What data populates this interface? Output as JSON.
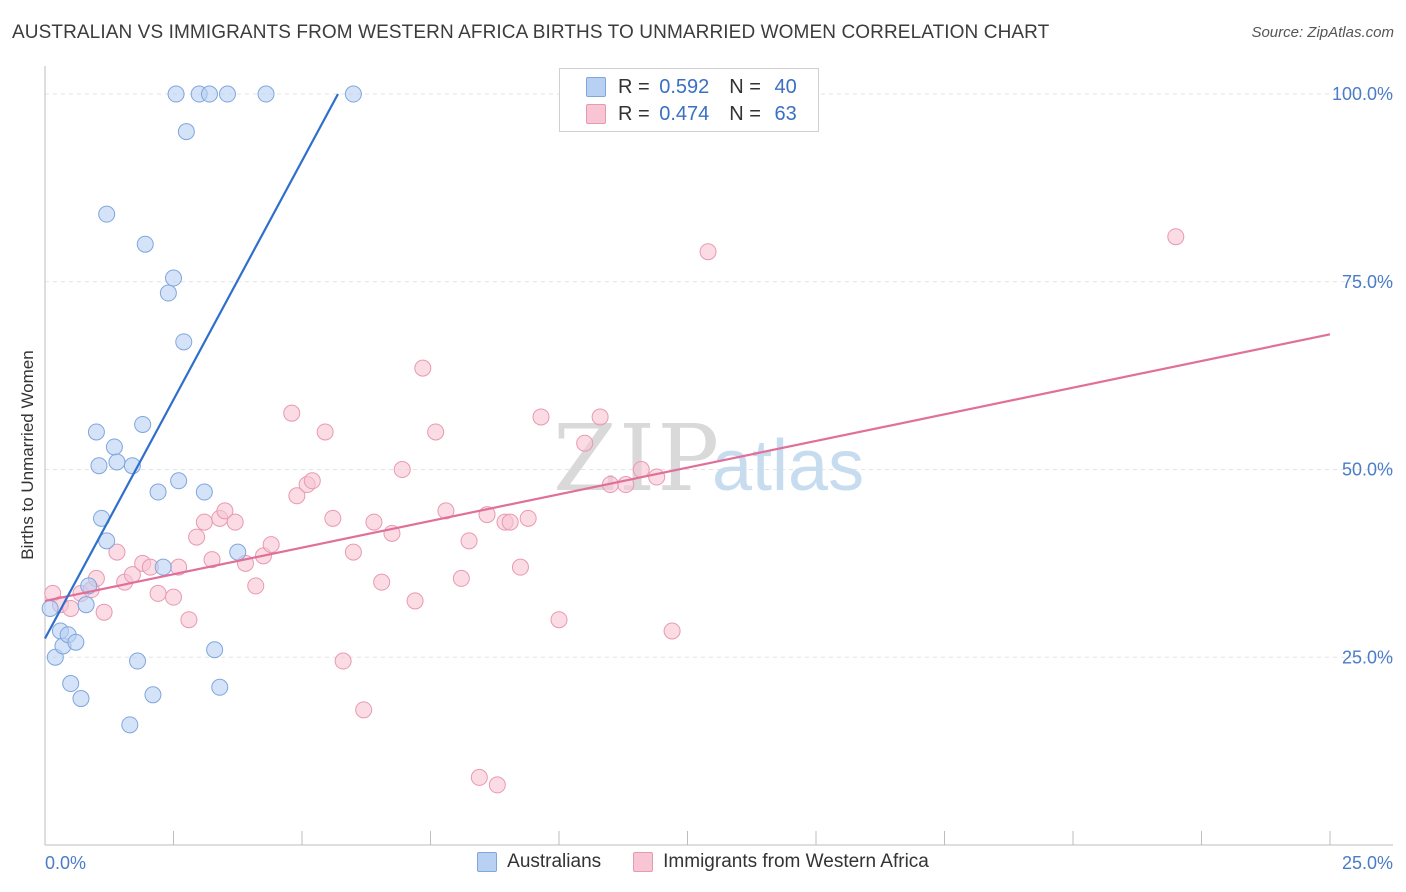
{
  "header": {
    "title": "AUSTRALIAN VS IMMIGRANTS FROM WESTERN AFRICA BIRTHS TO UNMARRIED WOMEN CORRELATION CHART",
    "source": "Source: ZipAtlas.com"
  },
  "watermark": {
    "zip": "ZIP",
    "atlas": "atlas"
  },
  "legend": {
    "rows": [
      {
        "r_label": "R = ",
        "r_value": "0.592",
        "n_label": "N = ",
        "n_value": "40"
      },
      {
        "r_label": "R = ",
        "r_value": "0.474",
        "n_label": "N = ",
        "n_value": "63"
      }
    ]
  },
  "bottom_legend": {
    "items": [
      "Australians",
      "Immigrants from Western Africa"
    ]
  },
  "colors": {
    "blue_fill": "#b8d1f3",
    "blue_stroke": "#7fa6dd",
    "blue_line": "#2f6fcc",
    "pink_fill": "#f8c5d4",
    "pink_stroke": "#e899b2",
    "pink_line": "#e0709a",
    "tick_text": "#4a7cc8",
    "grid": "#e3e3e3"
  },
  "chart_data": {
    "type": "scatter",
    "title": "AUSTRALIAN VS IMMIGRANTS FROM WESTERN AFRICA BIRTHS TO UNMARRIED WOMEN CORRELATION CHART",
    "xlabel": "",
    "ylabel": "Births to Unmarried Women",
    "xlim": [
      0,
      25
    ],
    "ylim": [
      0,
      102
    ],
    "x_tick_labels": [
      "0.0%",
      "25.0%"
    ],
    "y_ticks": [
      25,
      50,
      75,
      100
    ],
    "y_tick_labels": [
      "25.0%",
      "50.0%",
      "75.0%",
      "100.0%"
    ],
    "grid": "horizontal dashed",
    "legend_placement": "top-center",
    "series": [
      {
        "name": "Australians",
        "color": "#b8d1f3",
        "trend": {
          "x": [
            0.0,
            5.7
          ],
          "y": [
            27.5,
            100
          ]
        },
        "points": [
          [
            0.1,
            31.5
          ],
          [
            0.2,
            25.0
          ],
          [
            0.3,
            28.5
          ],
          [
            0.35,
            26.5
          ],
          [
            0.45,
            28.0
          ],
          [
            0.5,
            21.5
          ],
          [
            0.6,
            27.0
          ],
          [
            0.7,
            19.5
          ],
          [
            0.8,
            32.0
          ],
          [
            0.85,
            34.5
          ],
          [
            1.0,
            55.0
          ],
          [
            1.05,
            50.5
          ],
          [
            1.1,
            43.5
          ],
          [
            1.2,
            40.5
          ],
          [
            1.2,
            84.0
          ],
          [
            1.35,
            53.0
          ],
          [
            1.4,
            51.0
          ],
          [
            1.65,
            16.0
          ],
          [
            1.7,
            50.5
          ],
          [
            1.8,
            24.5
          ],
          [
            1.9,
            56.0
          ],
          [
            1.95,
            80.0
          ],
          [
            2.1,
            20.0
          ],
          [
            2.2,
            47.0
          ],
          [
            2.3,
            37.0
          ],
          [
            2.4,
            73.5
          ],
          [
            2.5,
            75.5
          ],
          [
            2.55,
            100.0
          ],
          [
            2.6,
            48.5
          ],
          [
            2.7,
            67.0
          ],
          [
            2.75,
            95.0
          ],
          [
            3.0,
            100.0
          ],
          [
            3.1,
            47.0
          ],
          [
            3.2,
            100.0
          ],
          [
            3.3,
            26.0
          ],
          [
            3.4,
            21.0
          ],
          [
            3.55,
            100.0
          ],
          [
            3.75,
            39.0
          ],
          [
            4.3,
            100.0
          ],
          [
            6.0,
            100.0
          ]
        ]
      },
      {
        "name": "Immigrants from Western Africa",
        "color": "#f8c5d4",
        "trend": {
          "x": [
            0.0,
            25.0
          ],
          "y": [
            32.5,
            68.0
          ]
        },
        "points": [
          [
            0.15,
            33.5
          ],
          [
            0.3,
            32.0
          ],
          [
            0.5,
            31.5
          ],
          [
            0.7,
            33.5
          ],
          [
            0.9,
            34.0
          ],
          [
            1.0,
            35.5
          ],
          [
            1.15,
            31.0
          ],
          [
            1.4,
            39.0
          ],
          [
            1.55,
            35.0
          ],
          [
            1.7,
            36.0
          ],
          [
            1.9,
            37.5
          ],
          [
            2.05,
            37.0
          ],
          [
            2.2,
            33.5
          ],
          [
            2.5,
            33.0
          ],
          [
            2.6,
            37.0
          ],
          [
            2.8,
            30.0
          ],
          [
            2.95,
            41.0
          ],
          [
            3.1,
            43.0
          ],
          [
            3.25,
            38.0
          ],
          [
            3.4,
            43.5
          ],
          [
            3.5,
            44.5
          ],
          [
            3.7,
            43.0
          ],
          [
            3.9,
            37.5
          ],
          [
            4.1,
            34.5
          ],
          [
            4.25,
            38.5
          ],
          [
            4.4,
            40.0
          ],
          [
            4.8,
            57.5
          ],
          [
            4.9,
            46.5
          ],
          [
            5.1,
            48.0
          ],
          [
            5.2,
            48.5
          ],
          [
            5.45,
            55.0
          ],
          [
            5.6,
            43.5
          ],
          [
            5.8,
            24.5
          ],
          [
            6.0,
            39.0
          ],
          [
            6.2,
            18.0
          ],
          [
            6.4,
            43.0
          ],
          [
            6.55,
            35.0
          ],
          [
            6.75,
            41.5
          ],
          [
            6.95,
            50.0
          ],
          [
            7.2,
            32.5
          ],
          [
            7.35,
            63.5
          ],
          [
            7.6,
            55.0
          ],
          [
            7.8,
            44.5
          ],
          [
            8.1,
            35.5
          ],
          [
            8.25,
            40.5
          ],
          [
            8.45,
            9.0
          ],
          [
            8.6,
            44.0
          ],
          [
            8.8,
            8.0
          ],
          [
            8.95,
            43.0
          ],
          [
            9.05,
            43.0
          ],
          [
            9.25,
            37.0
          ],
          [
            9.4,
            43.5
          ],
          [
            9.65,
            57.0
          ],
          [
            10.0,
            30.0
          ],
          [
            10.5,
            53.5
          ],
          [
            10.8,
            57.0
          ],
          [
            11.0,
            48.0
          ],
          [
            11.3,
            48.0
          ],
          [
            11.6,
            50.0
          ],
          [
            11.9,
            49.0
          ],
          [
            12.2,
            28.5
          ],
          [
            12.9,
            79.0
          ],
          [
            22.0,
            81.0
          ]
        ]
      }
    ]
  }
}
